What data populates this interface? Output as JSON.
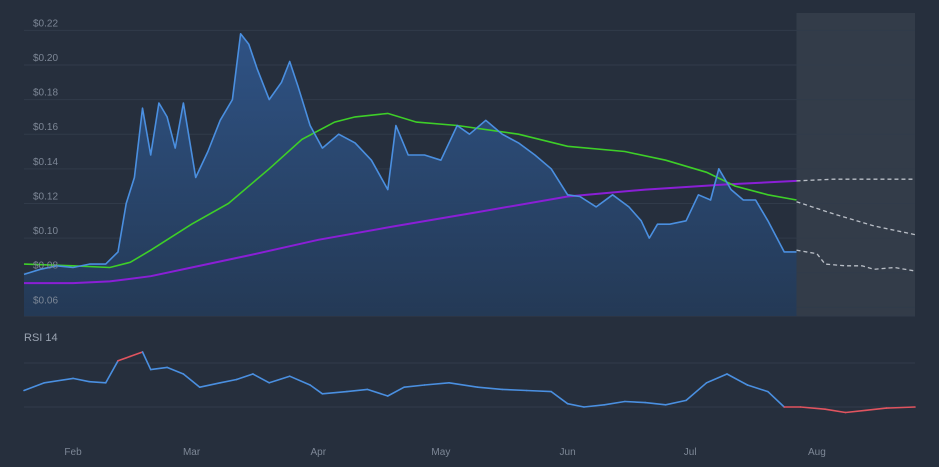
{
  "chart_data": [
    {
      "type": "line",
      "title": "",
      "xlabel": "",
      "ylabel": "",
      "y_unit": "$",
      "ylim": [
        0.055,
        0.23
      ],
      "yticks": [
        0.06,
        0.08,
        0.1,
        0.12,
        0.14,
        0.16,
        0.18,
        0.2,
        0.22
      ],
      "ytick_labels": [
        "$0.06",
        "$0.08",
        "$0.10",
        "$0.12",
        "$0.14",
        "$0.16",
        "$0.18",
        "$0.20",
        "$0.22"
      ],
      "xlim": [
        "2024-01-20",
        "2024-08-25"
      ],
      "xticks": [
        "2024-02-01",
        "2024-03-01",
        "2024-04-01",
        "2024-05-01",
        "2024-06-01",
        "2024-07-01",
        "2024-08-01"
      ],
      "xtick_labels": [
        "Feb",
        "Mar",
        "Apr",
        "May",
        "Jun",
        "Jul",
        "Aug"
      ],
      "grid": true,
      "legend": "none",
      "forecast_start": "2024-07-27",
      "colors": {
        "price": "#4a8fe0",
        "price_fill": "#2a4a72",
        "ma_green": "#3ecf28",
        "ma_purple": "#8a1fd6",
        "forecast": "#b9bec6",
        "forecast_band": "#333c49",
        "grid": "#313b4a"
      },
      "series": [
        {
          "key": "price",
          "x": [
            "2024-01-20",
            "2024-01-24",
            "2024-01-28",
            "2024-02-01",
            "2024-02-05",
            "2024-02-09",
            "2024-02-12",
            "2024-02-14",
            "2024-02-16",
            "2024-02-18",
            "2024-02-20",
            "2024-02-22",
            "2024-02-24",
            "2024-02-26",
            "2024-02-28",
            "2024-03-02",
            "2024-03-05",
            "2024-03-08",
            "2024-03-11",
            "2024-03-13",
            "2024-03-15",
            "2024-03-17",
            "2024-03-20",
            "2024-03-23",
            "2024-03-25",
            "2024-03-27",
            "2024-03-30",
            "2024-04-02",
            "2024-04-06",
            "2024-04-10",
            "2024-04-14",
            "2024-04-18",
            "2024-04-20",
            "2024-04-23",
            "2024-04-27",
            "2024-05-01",
            "2024-05-05",
            "2024-05-08",
            "2024-05-12",
            "2024-05-16",
            "2024-05-20",
            "2024-05-24",
            "2024-05-28",
            "2024-06-01",
            "2024-06-04",
            "2024-06-08",
            "2024-06-12",
            "2024-06-16",
            "2024-06-19",
            "2024-06-21",
            "2024-06-23",
            "2024-06-26",
            "2024-06-30",
            "2024-07-03",
            "2024-07-06",
            "2024-07-08",
            "2024-07-11",
            "2024-07-14",
            "2024-07-17",
            "2024-07-20",
            "2024-07-24",
            "2024-07-27"
          ],
          "values": [
            0.079,
            0.082,
            0.084,
            0.083,
            0.085,
            0.085,
            0.092,
            0.12,
            0.135,
            0.175,
            0.148,
            0.178,
            0.17,
            0.152,
            0.178,
            0.135,
            0.15,
            0.168,
            0.18,
            0.218,
            0.212,
            0.198,
            0.18,
            0.19,
            0.202,
            0.188,
            0.165,
            0.152,
            0.16,
            0.155,
            0.145,
            0.128,
            0.165,
            0.148,
            0.148,
            0.145,
            0.165,
            0.16,
            0.168,
            0.16,
            0.155,
            0.148,
            0.14,
            0.125,
            0.124,
            0.118,
            0.125,
            0.118,
            0.11,
            0.1,
            0.108,
            0.108,
            0.11,
            0.125,
            0.122,
            0.14,
            0.128,
            0.122,
            0.122,
            0.11,
            0.092,
            0.092
          ]
        },
        {
          "key": "ma_green",
          "x": [
            "2024-01-20",
            "2024-02-01",
            "2024-02-10",
            "2024-02-15",
            "2024-02-20",
            "2024-03-01",
            "2024-03-10",
            "2024-03-20",
            "2024-03-28",
            "2024-04-05",
            "2024-04-10",
            "2024-04-18",
            "2024-04-25",
            "2024-05-05",
            "2024-05-20",
            "2024-06-01",
            "2024-06-15",
            "2024-06-25",
            "2024-07-05",
            "2024-07-12",
            "2024-07-20",
            "2024-07-27"
          ],
          "values": [
            0.085,
            0.084,
            0.083,
            0.086,
            0.093,
            0.108,
            0.12,
            0.14,
            0.157,
            0.167,
            0.17,
            0.172,
            0.167,
            0.165,
            0.16,
            0.153,
            0.15,
            0.145,
            0.138,
            0.13,
            0.125,
            0.122
          ]
        },
        {
          "key": "ma_purple",
          "x": [
            "2024-01-20",
            "2024-02-01",
            "2024-02-10",
            "2024-02-20",
            "2024-03-01",
            "2024-03-15",
            "2024-04-01",
            "2024-04-20",
            "2024-05-10",
            "2024-06-01",
            "2024-06-20",
            "2024-07-10",
            "2024-07-27"
          ],
          "values": [
            0.074,
            0.074,
            0.075,
            0.078,
            0.083,
            0.09,
            0.099,
            0.107,
            0.115,
            0.124,
            0.128,
            0.131,
            0.133
          ]
        },
        {
          "key": "forecast_upper",
          "x": [
            "2024-07-27",
            "2024-08-05",
            "2024-08-15",
            "2024-08-25"
          ],
          "values": [
            0.133,
            0.134,
            0.134,
            0.134
          ]
        },
        {
          "key": "forecast_middle",
          "x": [
            "2024-07-27",
            "2024-08-05",
            "2024-08-15",
            "2024-08-25"
          ],
          "values": [
            0.121,
            0.114,
            0.107,
            0.102
          ]
        },
        {
          "key": "forecast_lower",
          "x": [
            "2024-07-27",
            "2024-08-01",
            "2024-08-03",
            "2024-08-08",
            "2024-08-12",
            "2024-08-15",
            "2024-08-20",
            "2024-08-25"
          ],
          "values": [
            0.093,
            0.091,
            0.085,
            0.084,
            0.084,
            0.082,
            0.083,
            0.081
          ]
        }
      ]
    },
    {
      "type": "line",
      "title": "RSI 14",
      "ylim": [
        0,
        100
      ],
      "reference_lines": [
        30,
        70
      ],
      "overbought": 70,
      "oversold": 30,
      "colors": {
        "line": "#4a8fe0",
        "extreme": "#e0545f",
        "reference": "#313b4a"
      },
      "series": [
        {
          "key": "rsi",
          "x": [
            "2024-01-20",
            "2024-01-25",
            "2024-02-01",
            "2024-02-05",
            "2024-02-09",
            "2024-02-12",
            "2024-02-15",
            "2024-02-18",
            "2024-02-20",
            "2024-02-24",
            "2024-02-28",
            "2024-03-03",
            "2024-03-08",
            "2024-03-12",
            "2024-03-16",
            "2024-03-20",
            "2024-03-25",
            "2024-03-30",
            "2024-04-02",
            "2024-04-08",
            "2024-04-13",
            "2024-04-18",
            "2024-04-22",
            "2024-04-27",
            "2024-05-03",
            "2024-05-10",
            "2024-05-16",
            "2024-05-22",
            "2024-05-28",
            "2024-06-01",
            "2024-06-05",
            "2024-06-10",
            "2024-06-15",
            "2024-06-20",
            "2024-06-25",
            "2024-06-30",
            "2024-07-05",
            "2024-07-10",
            "2024-07-15",
            "2024-07-20",
            "2024-07-24",
            "2024-07-28",
            "2024-08-03",
            "2024-08-08",
            "2024-08-13",
            "2024-08-18",
            "2024-08-25"
          ],
          "values": [
            45,
            52,
            56,
            53,
            52,
            72,
            76,
            80,
            64,
            66,
            60,
            48,
            52,
            55,
            60,
            52,
            58,
            50,
            42,
            44,
            46,
            40,
            48,
            50,
            52,
            48,
            46,
            45,
            44,
            33,
            30,
            32,
            35,
            34,
            32,
            36,
            52,
            60,
            50,
            44,
            30,
            30,
            28,
            25,
            27,
            29,
            30
          ]
        }
      ]
    }
  ]
}
